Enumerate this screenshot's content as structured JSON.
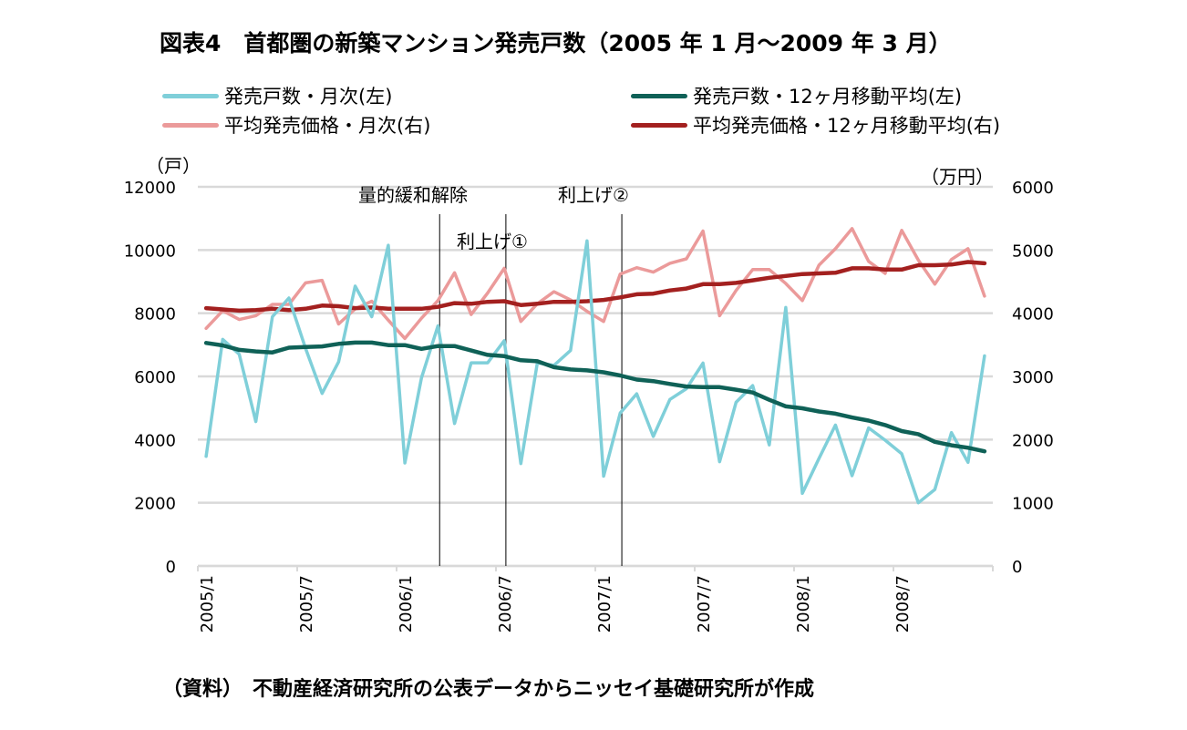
{
  "title": "図表4　首都圏の新築マンション発売戸数（2005 年 1 月～2009 年 3 月）",
  "legend": [
    {
      "label": "発売戸数・月次(左)",
      "color": "#7fcfd9"
    },
    {
      "label": "発売戸数・12ヶ月移動平均(左)",
      "color": "#0f6157"
    },
    {
      "label": "平均発売価格・月次(右)",
      "color": "#eb9a9a"
    },
    {
      "label": "平均発売価格・12ヶ月移動平均(右)",
      "color": "#a3201f"
    }
  ],
  "units": {
    "left": "（戸）",
    "right": "（万円）"
  },
  "footer": "（資料）　不動産経済研究所の公表データからニッセイ基礎研究所が作成",
  "chart_data": {
    "type": "line",
    "title": "図表4　首都圏の新築マンション発売戸数（2005 年 1 月～2009 年 3 月）",
    "xlabel": "",
    "ylabel_left": "戸",
    "ylabel_right": "万円",
    "x": [
      "2005/1",
      "2005/2",
      "2005/3",
      "2005/4",
      "2005/5",
      "2005/6",
      "2005/7",
      "2005/8",
      "2005/9",
      "2005/10",
      "2005/11",
      "2005/12",
      "2006/1",
      "2006/2",
      "2006/3",
      "2006/4",
      "2006/5",
      "2006/6",
      "2006/7",
      "2006/8",
      "2006/9",
      "2006/10",
      "2006/11",
      "2006/12",
      "2007/1",
      "2007/2",
      "2007/3",
      "2007/4",
      "2007/5",
      "2007/6",
      "2007/7",
      "2007/8",
      "2007/9",
      "2007/10",
      "2007/11",
      "2007/12",
      "2008/1",
      "2008/2",
      "2008/3",
      "2008/4",
      "2008/5",
      "2008/6",
      "2008/7",
      "2008/8",
      "2008/9",
      "2008/10",
      "2008/11",
      "2008/12"
    ],
    "x_tick_labels": [
      "2005/1",
      "2005/7",
      "2006/1",
      "2006/7",
      "2007/1",
      "2007/7",
      "2008/1",
      "2008/7"
    ],
    "ylim_left": [
      0,
      12000
    ],
    "yticks_left": [
      0,
      2000,
      4000,
      6000,
      8000,
      10000,
      12000
    ],
    "ylim_right": [
      0,
      6000
    ],
    "yticks_right": [
      0,
      1000,
      2000,
      3000,
      4000,
      5000,
      6000
    ],
    "grid": true,
    "legend_position": "top",
    "series": [
      {
        "name": "発売戸数・月次(左)",
        "axis": "left",
        "color": "#7fcfd9",
        "values": [
          3470,
          7170,
          6700,
          4570,
          7890,
          8480,
          6890,
          5460,
          6460,
          8860,
          7890,
          10150,
          3260,
          5950,
          7600,
          4510,
          6430,
          6430,
          7130,
          3240,
          6430,
          6350,
          6820,
          10290,
          2840,
          4840,
          5450,
          4100,
          5270,
          5610,
          6420,
          3300,
          5180,
          5710,
          3830,
          8180,
          2300,
          3400,
          4460,
          2860,
          4370,
          3980,
          3550,
          2000,
          2420,
          4220,
          3280,
          6650
        ]
      },
      {
        "name": "発売戸数・12ヶ月移動平均(左)",
        "axis": "left",
        "color": "#0f6157",
        "values": [
          7060,
          6980,
          6840,
          6790,
          6760,
          6910,
          6930,
          6950,
          7030,
          7070,
          7070,
          6990,
          6990,
          6870,
          6960,
          6960,
          6820,
          6680,
          6640,
          6510,
          6480,
          6290,
          6220,
          6190,
          6130,
          6030,
          5900,
          5850,
          5760,
          5680,
          5660,
          5660,
          5580,
          5490,
          5260,
          5050,
          4990,
          4890,
          4820,
          4700,
          4600,
          4460,
          4270,
          4170,
          3930,
          3820,
          3740,
          3630
        ]
      },
      {
        "name": "平均発売価格・月次(右)",
        "axis": "right",
        "color": "#eb9a9a",
        "values": [
          3760,
          4040,
          3900,
          3960,
          4140,
          4140,
          4480,
          4520,
          3830,
          4070,
          4190,
          3890,
          3600,
          3920,
          4200,
          4640,
          3980,
          4320,
          4710,
          3870,
          4150,
          4340,
          4210,
          4030,
          3870,
          4620,
          4720,
          4650,
          4790,
          4860,
          5300,
          3960,
          4360,
          4690,
          4690,
          4470,
          4200,
          4760,
          5020,
          5340,
          4820,
          4630,
          5310,
          4840,
          4460,
          4850,
          5020,
          4270
        ]
      },
      {
        "name": "平均発売価格・12ヶ月移動平均(右)",
        "axis": "right",
        "color": "#a3201f",
        "values": [
          4080,
          4060,
          4040,
          4050,
          4070,
          4050,
          4070,
          4120,
          4110,
          4080,
          4090,
          4070,
          4070,
          4070,
          4100,
          4160,
          4150,
          4180,
          4190,
          4130,
          4150,
          4180,
          4180,
          4190,
          4210,
          4250,
          4300,
          4310,
          4360,
          4390,
          4460,
          4460,
          4480,
          4520,
          4560,
          4590,
          4620,
          4630,
          4640,
          4710,
          4710,
          4690,
          4690,
          4760,
          4760,
          4770,
          4810,
          4790
        ]
      }
    ],
    "annotations": [
      {
        "text": "量的緩和解除",
        "x": "2006/3"
      },
      {
        "text": "利上げ①",
        "x": "2006/7"
      },
      {
        "text": "利上げ②",
        "x": "2007/2"
      }
    ]
  }
}
